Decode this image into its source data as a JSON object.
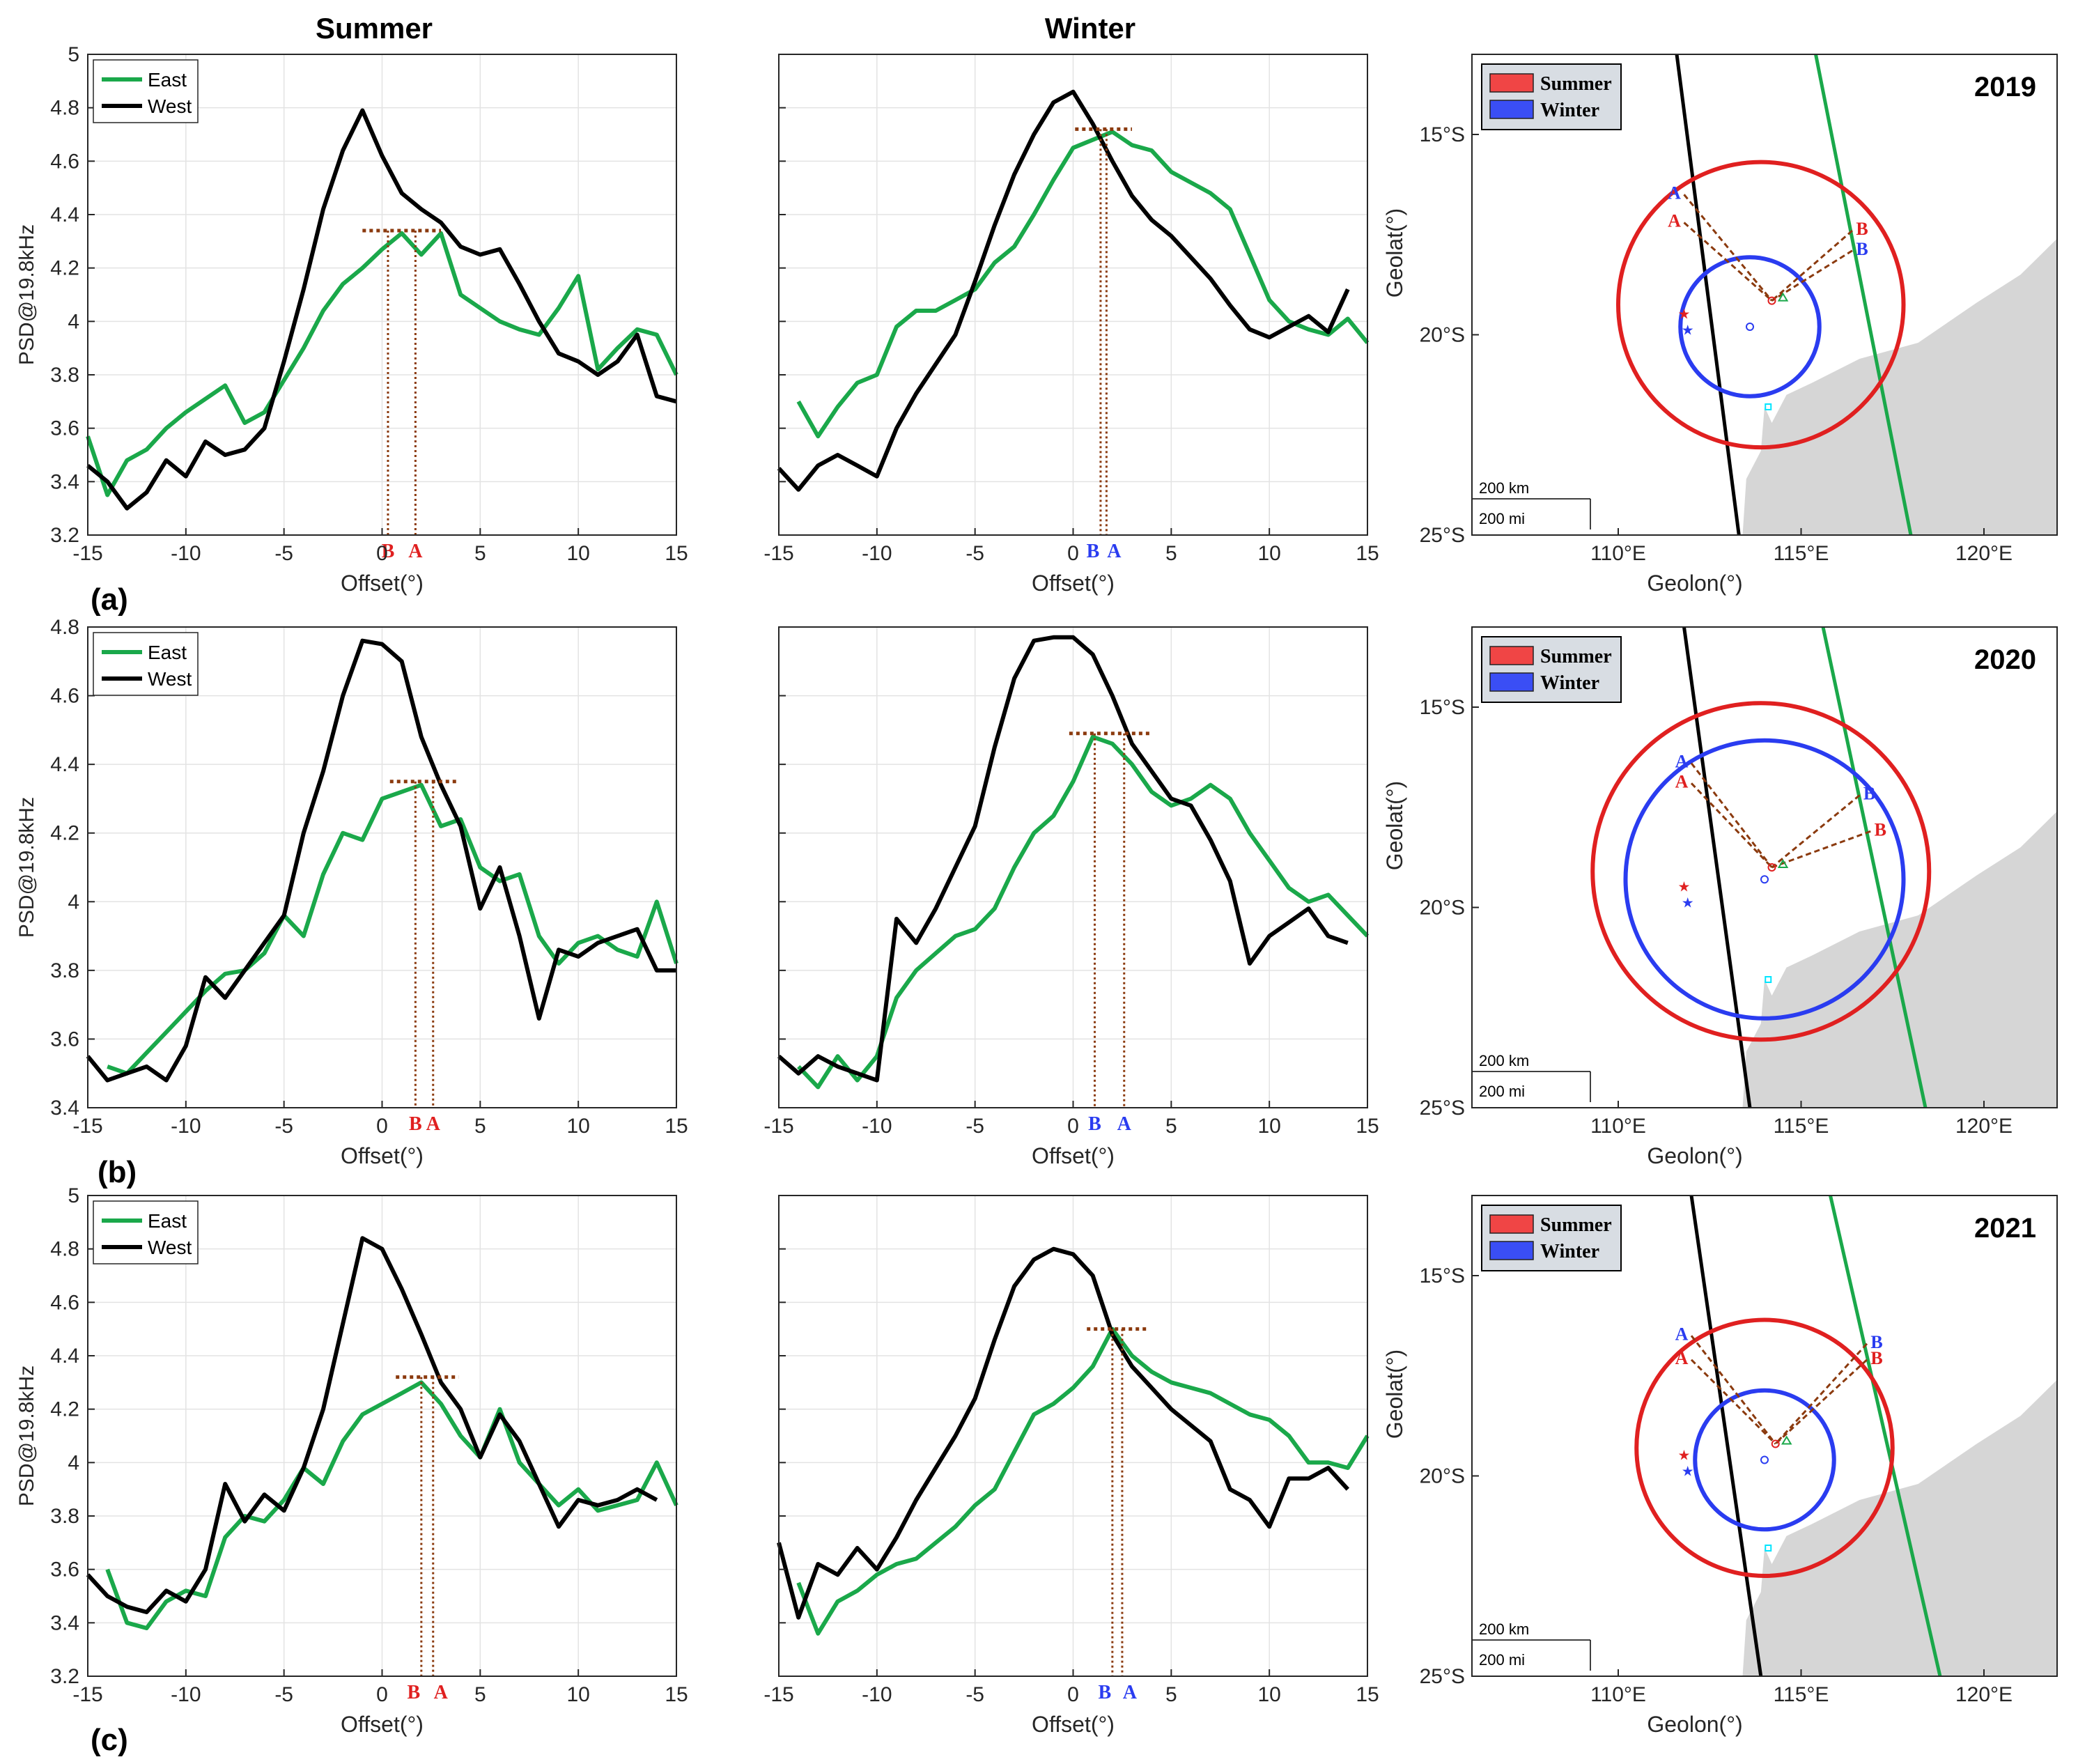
{
  "columns": {
    "summer": "Summer",
    "winter": "Winter"
  },
  "panel_labels": [
    "(a)",
    "(b)",
    "(c)"
  ],
  "legend": {
    "east": "East",
    "west": "West",
    "summer": "Summer",
    "winter": "Winter"
  },
  "axes": {
    "xlabel": "Offset(°)",
    "ylabel": "PSD@19.8kHz",
    "map_xlabel": "Geolon(°)",
    "map_ylabel": "Geolat(°)",
    "map_xticks": [
      "110°E",
      "115°E",
      "120°E"
    ],
    "map_yticks": [
      "15°S",
      "20°S",
      "25°S"
    ],
    "scale_km": "200 km",
    "scale_mi": "200 mi"
  },
  "colors": {
    "east": "#1aa84a",
    "west": "#000000",
    "summer": "#e02020",
    "winter": "#2a3cf0",
    "marker": "#8b3a0e",
    "land": "#d6d6d6"
  },
  "chart_data": [
    {
      "type": "line",
      "title": "Summer (a)",
      "xlim": [
        -15,
        15
      ],
      "ylim": [
        3.2,
        5
      ],
      "yticks": [
        3.2,
        3.4,
        3.6,
        3.8,
        4,
        4.2,
        4.4,
        4.6,
        4.8,
        5
      ],
      "xticks": [
        -15,
        -10,
        -5,
        0,
        5,
        10,
        15
      ],
      "series": [
        {
          "name": "East",
          "x": [
            -15,
            -14,
            -13,
            -12,
            -11,
            -10,
            -9,
            -8,
            -7,
            -6,
            -5,
            -4,
            -3,
            -2,
            -1,
            0,
            1,
            2,
            3,
            4,
            5,
            6,
            7,
            8,
            9,
            10,
            11,
            12,
            13,
            14,
            15
          ],
          "y": [
            3.57,
            3.35,
            3.48,
            3.52,
            3.6,
            3.66,
            3.71,
            3.76,
            3.62,
            3.66,
            3.78,
            3.9,
            4.04,
            4.14,
            4.2,
            4.27,
            4.33,
            4.25,
            4.33,
            4.1,
            4.05,
            4.0,
            3.97,
            3.95,
            4.05,
            4.17,
            3.82,
            3.9,
            3.97,
            3.95,
            3.8
          ]
        },
        {
          "name": "West",
          "x": [
            -15,
            -14,
            -13,
            -12,
            -11,
            -10,
            -9,
            -8,
            -7,
            -6,
            -5,
            -4,
            -3,
            -2,
            -1,
            0,
            1,
            2,
            3,
            4,
            5,
            6,
            7,
            8,
            9,
            10,
            11,
            12,
            13,
            14,
            15
          ],
          "y": [
            3.46,
            3.4,
            3.3,
            3.36,
            3.48,
            3.42,
            3.55,
            3.5,
            3.52,
            3.6,
            3.85,
            4.12,
            4.42,
            4.64,
            4.79,
            4.62,
            4.48,
            4.42,
            4.37,
            4.28,
            4.25,
            4.27,
            4.14,
            4.0,
            3.88,
            3.85,
            3.8,
            3.85,
            3.95,
            3.72,
            3.7
          ]
        }
      ],
      "ref": {
        "A": 1.7,
        "B": 0.3,
        "level": 4.34
      }
    },
    {
      "type": "line",
      "title": "Winter (a)",
      "xlim": [
        -15,
        15
      ],
      "ylim": [
        3.2,
        5
      ],
      "yticks": [
        3.2,
        3.4,
        3.6,
        3.8,
        4,
        4.2,
        4.4,
        4.6,
        4.8,
        5
      ],
      "xticks": [
        -15,
        -10,
        -5,
        0,
        5,
        10,
        15
      ],
      "series": [
        {
          "name": "East",
          "x": [
            -14,
            -13,
            -12,
            -11,
            -10,
            -9,
            -8,
            -7,
            -6,
            -5,
            -4,
            -3,
            -2,
            -1,
            0,
            1,
            2,
            3,
            4,
            5,
            6,
            7,
            8,
            9,
            10,
            11,
            12,
            13,
            14,
            15
          ],
          "y": [
            3.7,
            3.57,
            3.68,
            3.77,
            3.8,
            3.98,
            4.04,
            4.04,
            4.08,
            4.12,
            4.22,
            4.28,
            4.4,
            4.53,
            4.65,
            4.68,
            4.71,
            4.66,
            4.64,
            4.56,
            4.52,
            4.48,
            4.42,
            4.25,
            4.08,
            4.0,
            3.97,
            3.95,
            4.01,
            3.92
          ]
        },
        {
          "name": "West",
          "x": [
            -15,
            -14,
            -13,
            -12,
            -11,
            -10,
            -9,
            -8,
            -7,
            -6,
            -5,
            -4,
            -3,
            -2,
            -1,
            0,
            1,
            2,
            3,
            4,
            5,
            6,
            7,
            8,
            9,
            10,
            11,
            12,
            13,
            14
          ],
          "y": [
            3.45,
            3.37,
            3.46,
            3.5,
            3.46,
            3.42,
            3.6,
            3.73,
            3.84,
            3.95,
            4.15,
            4.36,
            4.55,
            4.7,
            4.82,
            4.86,
            4.74,
            4.6,
            4.47,
            4.38,
            4.32,
            4.24,
            4.16,
            4.06,
            3.97,
            3.94,
            3.98,
            4.02,
            3.96,
            4.12
          ]
        }
      ],
      "ref": {
        "A": 1.7,
        "B": 1.4,
        "level": 4.72
      }
    },
    {
      "type": "line",
      "title": "Summer (b)",
      "xlim": [
        -15,
        15
      ],
      "ylim": [
        3.4,
        4.8
      ],
      "yticks": [
        3.4,
        3.6,
        3.8,
        4,
        4.2,
        4.4,
        4.6,
        4.8
      ],
      "xticks": [
        -15,
        -10,
        -5,
        0,
        5,
        10,
        15
      ],
      "series": [
        {
          "name": "East",
          "x": [
            -14,
            -13,
            -12,
            -11,
            -10,
            -9,
            -8,
            -7,
            -6,
            -5,
            -4,
            -3,
            -2,
            -1,
            0,
            1,
            2,
            3,
            4,
            5,
            6,
            7,
            8,
            9,
            10,
            11,
            12,
            13,
            14,
            15
          ],
          "y": [
            3.52,
            3.5,
            3.56,
            3.62,
            3.68,
            3.74,
            3.79,
            3.8,
            3.85,
            3.96,
            3.9,
            4.08,
            4.2,
            4.18,
            4.3,
            4.32,
            4.34,
            4.22,
            4.24,
            4.1,
            4.06,
            4.08,
            3.9,
            3.82,
            3.88,
            3.9,
            3.86,
            3.84,
            4.0,
            3.82
          ]
        },
        {
          "name": "West",
          "x": [
            -15,
            -14,
            -13,
            -12,
            -11,
            -10,
            -9,
            -8,
            -7,
            -6,
            -5,
            -4,
            -3,
            -2,
            -1,
            0,
            1,
            2,
            3,
            4,
            5,
            6,
            7,
            8,
            9,
            10,
            11,
            12,
            13,
            14,
            15
          ],
          "y": [
            3.55,
            3.48,
            3.5,
            3.52,
            3.48,
            3.58,
            3.78,
            3.72,
            3.8,
            3.88,
            3.96,
            4.2,
            4.38,
            4.6,
            4.76,
            4.75,
            4.7,
            4.48,
            4.34,
            4.22,
            3.98,
            4.1,
            3.9,
            3.66,
            3.86,
            3.84,
            3.88,
            3.9,
            3.92,
            3.8,
            3.8
          ]
        }
      ],
      "ref": {
        "A": 2.6,
        "B": 1.7,
        "level": 4.35
      }
    },
    {
      "type": "line",
      "title": "Winter (b)",
      "xlim": [
        -15,
        15
      ],
      "ylim": [
        3.4,
        4.8
      ],
      "yticks": [
        3.4,
        3.6,
        3.8,
        4,
        4.2,
        4.4,
        4.6,
        4.8
      ],
      "xticks": [
        -15,
        -10,
        -5,
        0,
        5,
        10,
        15
      ],
      "series": [
        {
          "name": "East",
          "x": [
            -14,
            -13,
            -12,
            -11,
            -10,
            -9,
            -8,
            -7,
            -6,
            -5,
            -4,
            -3,
            -2,
            -1,
            0,
            1,
            2,
            3,
            4,
            5,
            6,
            7,
            8,
            9,
            10,
            11,
            12,
            13,
            14,
            15
          ],
          "y": [
            3.52,
            3.46,
            3.55,
            3.48,
            3.55,
            3.72,
            3.8,
            3.85,
            3.9,
            3.92,
            3.98,
            4.1,
            4.2,
            4.25,
            4.35,
            4.48,
            4.46,
            4.4,
            4.32,
            4.28,
            4.3,
            4.34,
            4.3,
            4.2,
            4.12,
            4.04,
            4.0,
            4.02,
            3.96,
            3.9
          ]
        },
        {
          "name": "West",
          "x": [
            -15,
            -14,
            -13,
            -12,
            -11,
            -10,
            -9,
            -8,
            -7,
            -6,
            -5,
            -4,
            -3,
            -2,
            -1,
            0,
            1,
            2,
            3,
            4,
            5,
            6,
            7,
            8,
            9,
            10,
            11,
            12,
            13,
            14
          ],
          "y": [
            3.55,
            3.5,
            3.55,
            3.52,
            3.5,
            3.48,
            3.95,
            3.88,
            3.98,
            4.1,
            4.22,
            4.45,
            4.65,
            4.76,
            4.77,
            4.77,
            4.72,
            4.6,
            4.46,
            4.38,
            4.3,
            4.28,
            4.18,
            4.06,
            3.82,
            3.9,
            3.94,
            3.98,
            3.9,
            3.88
          ]
        }
      ],
      "ref": {
        "A": 2.6,
        "B": 1.1,
        "level": 4.49
      }
    },
    {
      "type": "line",
      "title": "Summer (c)",
      "xlim": [
        -15,
        15
      ],
      "ylim": [
        3.2,
        5
      ],
      "yticks": [
        3.2,
        3.4,
        3.6,
        3.8,
        4,
        4.2,
        4.4,
        4.6,
        4.8,
        5
      ],
      "xticks": [
        -15,
        -10,
        -5,
        0,
        5,
        10,
        15
      ],
      "series": [
        {
          "name": "East",
          "x": [
            -14,
            -13,
            -12,
            -11,
            -10,
            -9,
            -8,
            -7,
            -6,
            -5,
            -4,
            -3,
            -2,
            -1,
            0,
            1,
            2,
            3,
            4,
            5,
            6,
            7,
            8,
            9,
            10,
            11,
            12,
            13,
            14,
            15
          ],
          "y": [
            3.6,
            3.4,
            3.38,
            3.48,
            3.52,
            3.5,
            3.72,
            3.8,
            3.78,
            3.86,
            3.98,
            3.92,
            4.08,
            4.18,
            4.22,
            4.26,
            4.3,
            4.22,
            4.1,
            4.02,
            4.2,
            4.0,
            3.92,
            3.84,
            3.9,
            3.82,
            3.84,
            3.86,
            4.0,
            3.84
          ]
        },
        {
          "name": "West",
          "x": [
            -15,
            -14,
            -13,
            -12,
            -11,
            -10,
            -9,
            -8,
            -7,
            -6,
            -5,
            -4,
            -3,
            -2,
            -1,
            0,
            1,
            2,
            3,
            4,
            5,
            6,
            7,
            8,
            9,
            10,
            11,
            12,
            13,
            14
          ],
          "y": [
            3.58,
            3.5,
            3.46,
            3.44,
            3.52,
            3.48,
            3.6,
            3.92,
            3.78,
            3.88,
            3.82,
            3.98,
            4.2,
            4.52,
            4.84,
            4.8,
            4.65,
            4.48,
            4.3,
            4.2,
            4.02,
            4.18,
            4.08,
            3.92,
            3.76,
            3.86,
            3.84,
            3.86,
            3.9,
            3.86
          ]
        }
      ],
      "ref": {
        "A": 2.6,
        "B": 2.0,
        "level": 4.32
      }
    },
    {
      "type": "line",
      "title": "Winter (c)",
      "xlim": [
        -15,
        15
      ],
      "ylim": [
        3.2,
        5
      ],
      "yticks": [
        3.2,
        3.4,
        3.6,
        3.8,
        4,
        4.2,
        4.4,
        4.6,
        4.8,
        5
      ],
      "xticks": [
        -15,
        -10,
        -5,
        0,
        5,
        10,
        15
      ],
      "series": [
        {
          "name": "East",
          "x": [
            -14,
            -13,
            -12,
            -11,
            -10,
            -9,
            -8,
            -7,
            -6,
            -5,
            -4,
            -3,
            -2,
            -1,
            0,
            1,
            2,
            3,
            4,
            5,
            6,
            7,
            8,
            9,
            10,
            11,
            12,
            13,
            14,
            15
          ],
          "y": [
            3.55,
            3.36,
            3.48,
            3.52,
            3.58,
            3.62,
            3.64,
            3.7,
            3.76,
            3.84,
            3.9,
            4.04,
            4.18,
            4.22,
            4.28,
            4.36,
            4.5,
            4.4,
            4.34,
            4.3,
            4.28,
            4.26,
            4.22,
            4.18,
            4.16,
            4.1,
            4.0,
            4.0,
            3.98,
            4.1
          ]
        },
        {
          "name": "West",
          "x": [
            -15,
            -14,
            -13,
            -12,
            -11,
            -10,
            -9,
            -8,
            -7,
            -6,
            -5,
            -4,
            -3,
            -2,
            -1,
            0,
            1,
            2,
            3,
            4,
            5,
            6,
            7,
            8,
            9,
            10,
            11,
            12,
            13,
            14
          ],
          "y": [
            3.7,
            3.42,
            3.62,
            3.58,
            3.68,
            3.6,
            3.72,
            3.86,
            3.98,
            4.1,
            4.24,
            4.46,
            4.66,
            4.76,
            4.8,
            4.78,
            4.7,
            4.48,
            4.36,
            4.28,
            4.2,
            4.14,
            4.08,
            3.9,
            3.86,
            3.76,
            3.94,
            3.94,
            3.98,
            3.9
          ]
        }
      ],
      "ref": {
        "A": 2.5,
        "B": 2.0,
        "level": 4.5
      }
    }
  ],
  "maps": [
    {
      "year": "2019",
      "xlim": [
        106,
        122
      ],
      "ylim": [
        -25,
        -13
      ],
      "summer_circle": {
        "lon": 113.9,
        "lat": -19.25,
        "r": 3.9
      },
      "winter_circle": {
        "lon": 113.6,
        "lat": -19.8,
        "r": 1.9
      },
      "A_summer": [
        111.8,
        -17.2
      ],
      "A_winter": [
        111.8,
        -16.5
      ],
      "B_summer": [
        116.4,
        -17.4
      ],
      "B_winter": [
        116.4,
        -17.9
      ]
    },
    {
      "year": "2020",
      "xlim": [
        106,
        122
      ],
      "ylim": [
        -25,
        -13
      ],
      "summer_circle": {
        "lon": 113.9,
        "lat": -19.1,
        "r": 4.6
      },
      "winter_circle": {
        "lon": 114.0,
        "lat": -19.3,
        "r": 3.8
      },
      "A_summer": [
        112.0,
        -16.9
      ],
      "A_winter": [
        112.0,
        -16.4
      ],
      "B_summer": [
        116.9,
        -18.1
      ],
      "B_winter": [
        116.6,
        -17.2
      ]
    },
    {
      "year": "2021",
      "xlim": [
        106,
        122
      ],
      "ylim": [
        -25,
        -13
      ],
      "summer_circle": {
        "lon": 114.0,
        "lat": -19.3,
        "r": 3.5
      },
      "winter_circle": {
        "lon": 114.0,
        "lat": -19.6,
        "r": 1.9
      },
      "A_summer": [
        112.0,
        -17.1
      ],
      "A_winter": [
        112.0,
        -16.5
      ],
      "B_summer": [
        116.8,
        -17.1
      ],
      "B_winter": [
        116.8,
        -16.7
      ]
    }
  ]
}
